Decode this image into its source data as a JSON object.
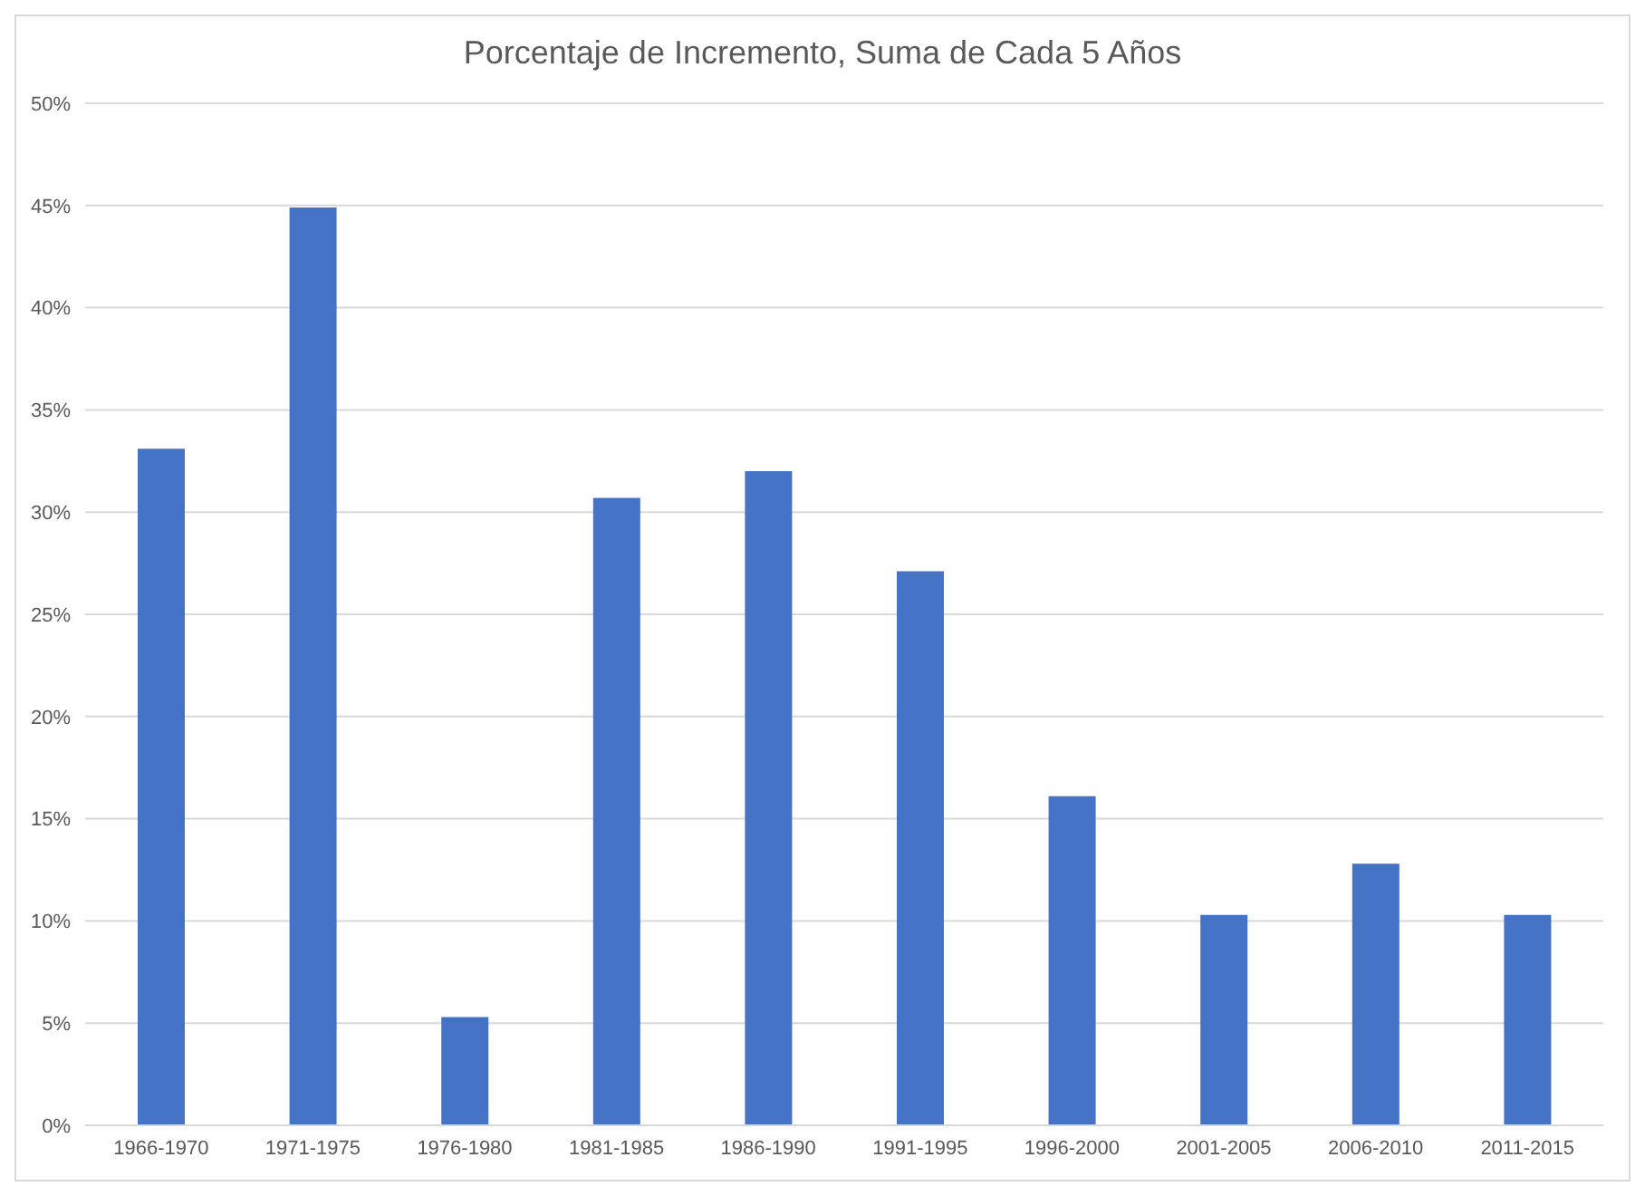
{
  "chart_data": {
    "type": "bar",
    "title": "Porcentaje de Incremento, Suma de Cada 5 Años",
    "categories": [
      "1966-1970",
      "1971-1975",
      "1976-1980",
      "1981-1985",
      "1986-1990",
      "1991-1995",
      "1996-2000",
      "2001-2005",
      "2006-2010",
      "2011-2015"
    ],
    "values": [
      33.1,
      44.9,
      5.3,
      30.7,
      32.0,
      27.1,
      16.1,
      10.3,
      12.8,
      10.3
    ],
    "color": "#4472c4",
    "ylim": [
      0,
      50
    ],
    "yticks": [
      {
        "value": 0,
        "label": "0%"
      },
      {
        "value": 5,
        "label": "5%"
      },
      {
        "value": 10,
        "label": "10%"
      },
      {
        "value": 15,
        "label": "15%"
      },
      {
        "value": 20,
        "label": "20%"
      },
      {
        "value": 25,
        "label": "25%"
      },
      {
        "value": 30,
        "label": "30%"
      },
      {
        "value": 35,
        "label": "35%"
      },
      {
        "value": 40,
        "label": "40%"
      },
      {
        "value": 45,
        "label": "45%"
      },
      {
        "value": 50,
        "label": "50%"
      }
    ],
    "grid": "y"
  }
}
